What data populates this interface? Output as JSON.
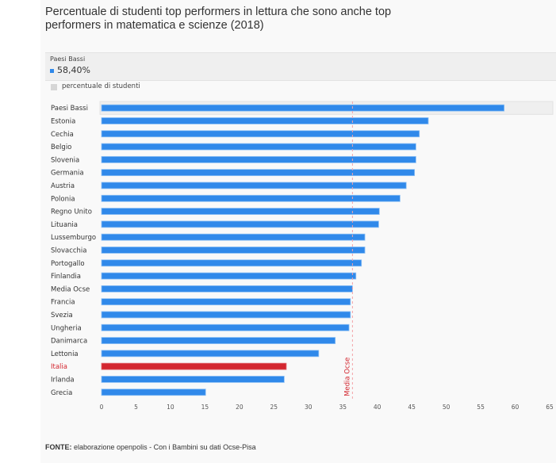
{
  "title": "Percentuale di studenti top performers in lettura che sono anche top performers in matematica e scienze (2018)",
  "tooltip": {
    "name": "Paesi Bassi",
    "value": "58,40%",
    "swatch_color": "#3089ea"
  },
  "legend": {
    "label": "percentuale di studenti",
    "swatch_color": "#d6d6d6"
  },
  "source": {
    "prefix": "FONTE:",
    "text": " elaborazione openpolis - Con i Bambini su dati Ocse-Pisa"
  },
  "colors": {
    "bar": "#3089ea",
    "highlight": "#d3262f",
    "reference": "#f4a3a8",
    "reference_label": "#d3262f"
  },
  "chart_data": {
    "type": "bar",
    "orientation": "horizontal",
    "title": "Percentuale di studenti top performers in lettura che sono anche top performers in matematica e scienze (2018)",
    "xlabel": "",
    "ylabel": "",
    "xlim": [
      0,
      65
    ],
    "xticks": [
      "0",
      "5",
      "10",
      "15",
      "20",
      "25",
      "30",
      "35",
      "40",
      "45",
      "50",
      "55",
      "60",
      "65"
    ],
    "grid": false,
    "legend_position": "top-left",
    "categories": [
      "Paesi Bassi",
      "Estonia",
      "Cechia",
      "Belgio",
      "Slovenia",
      "Germania",
      "Austria",
      "Polonia",
      "Regno Unito",
      "Lituania",
      "Lussemburgo",
      "Slovacchia",
      "Portogallo",
      "Finlandia",
      "Media Ocse",
      "Francia",
      "Svezia",
      "Ungheria",
      "Danimarca",
      "Lettonia",
      "Italia",
      "Irlanda",
      "Grecia"
    ],
    "series": [
      {
        "name": "percentuale di studenti",
        "values": [
          58.4,
          47.4,
          46.1,
          45.6,
          45.6,
          45.4,
          44.2,
          43.3,
          40.3,
          40.2,
          38.2,
          38.2,
          37.7,
          36.9,
          36.4,
          36.1,
          36.1,
          35.9,
          33.9,
          31.5,
          26.8,
          26.5,
          15.1
        ]
      }
    ],
    "highlighted_category": "Italia",
    "hovered_category": "Paesi Bassi",
    "reference_line": {
      "label": "Media Ocse",
      "value": 36.4
    }
  }
}
